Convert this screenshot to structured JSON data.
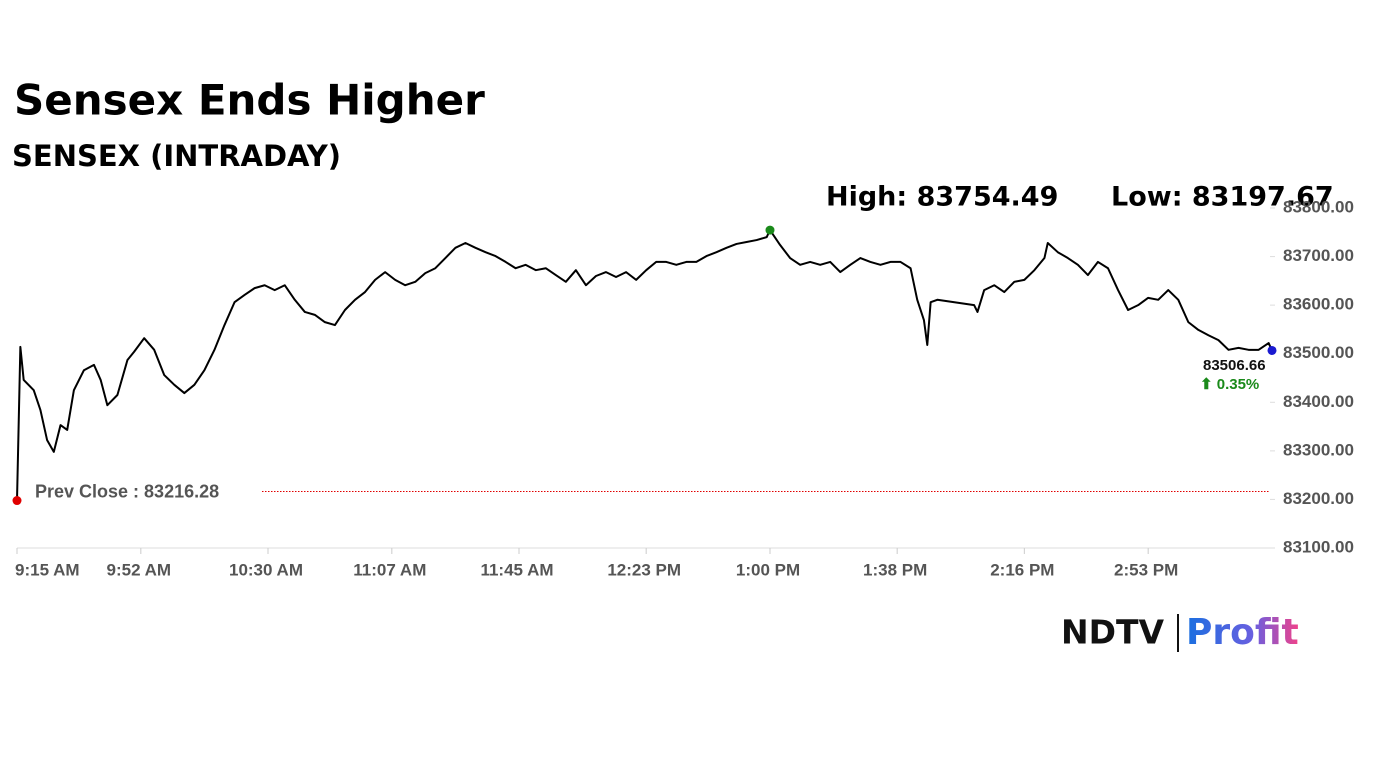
{
  "chart_data": {
    "type": "line",
    "title": "Sensex Ends Higher",
    "subtitle": "SENSEX (INTRADAY)",
    "high": {
      "value": 83754.49,
      "label": "High: 83754.49"
    },
    "low": {
      "value": 83197.67,
      "label": "Low: 83197.67"
    },
    "prev_close": {
      "value": 83216.28,
      "label": "Prev Close : 83216.28"
    },
    "last": {
      "value": 83506.66,
      "label": "83506.66"
    },
    "change": {
      "value": 0.35,
      "label": "⬆ 0.35%"
    },
    "x": [
      "9:15 AM",
      "9:16 AM",
      "9:17 AM",
      "9:20 AM",
      "9:22 AM",
      "9:24 AM",
      "9:26 AM",
      "9:28 AM",
      "9:30 AM",
      "9:32 AM",
      "9:35 AM",
      "9:38 AM",
      "9:40 AM",
      "9:42 AM",
      "9:45 AM",
      "9:48 AM",
      "9:50 AM",
      "9:53 AM",
      "9:56 AM",
      "9:59 AM",
      "10:02 AM",
      "10:05 AM",
      "10:08 AM",
      "10:11 AM",
      "10:14 AM",
      "10:17 AM",
      "10:20 AM",
      "10:23 AM",
      "10:26 AM",
      "10:29 AM",
      "10:32 AM",
      "10:35 AM",
      "10:38 AM",
      "10:41 AM",
      "10:44 AM",
      "10:47 AM",
      "10:50 AM",
      "10:53 AM",
      "10:56 AM",
      "10:59 AM",
      "11:02 AM",
      "11:05 AM",
      "11:08 AM",
      "11:11 AM",
      "11:14 AM",
      "11:17 AM",
      "11:20 AM",
      "11:23 AM",
      "11:26 AM",
      "11:29 AM",
      "11:32 AM",
      "11:35 AM",
      "11:38 AM",
      "11:41 AM",
      "11:44 AM",
      "11:47 AM",
      "11:50 AM",
      "11:53 AM",
      "11:56 AM",
      "11:59 AM",
      "12:02 PM",
      "12:05 PM",
      "12:08 PM",
      "12:11 PM",
      "12:14 PM",
      "12:17 PM",
      "12:20 PM",
      "12:23 PM",
      "12:26 PM",
      "12:29 PM",
      "12:32 PM",
      "12:35 PM",
      "12:38 PM",
      "12:41 PM",
      "12:44 PM",
      "12:47 PM",
      "12:50 PM",
      "12:53 PM",
      "12:56 PM",
      "12:59 PM",
      "1:00 PM",
      "1:03 PM",
      "1:06 PM",
      "1:09 PM",
      "1:12 PM",
      "1:15 PM",
      "1:18 PM",
      "1:21 PM",
      "1:24 PM",
      "1:27 PM",
      "1:30 PM",
      "1:33 PM",
      "1:36 PM",
      "1:39 PM",
      "1:42 PM",
      "1:44 PM",
      "1:46 PM",
      "1:47 PM",
      "1:48 PM",
      "1:50 PM",
      "2:01 PM",
      "2:02 PM",
      "2:04 PM",
      "2:07 PM",
      "2:10 PM",
      "2:13 PM",
      "2:16 PM",
      "2:19 PM",
      "2:22 PM",
      "2:23 PM",
      "2:26 PM",
      "2:29 PM",
      "2:32 PM",
      "2:35 PM",
      "2:38 PM",
      "2:41 PM",
      "2:44 PM",
      "2:47 PM",
      "2:50 PM",
      "2:53 PM",
      "2:56 PM",
      "2:59 PM",
      "3:02 PM",
      "3:05 PM",
      "3:08 PM",
      "3:11 PM",
      "3:14 PM",
      "3:17 PM",
      "3:20 PM",
      "3:23 PM",
      "3:26 PM",
      "3:29 PM",
      "3:30 PM"
    ],
    "series": [
      {
        "name": "SENSEX",
        "color": "#000000",
        "values": [
          83197.67,
          83514,
          83446,
          83425,
          83384,
          83322,
          83298,
          83353,
          83343,
          83425,
          83466,
          83477,
          83446,
          83394,
          83415,
          83487,
          83504,
          83532,
          83508,
          83456,
          83436,
          83419,
          83436,
          83466,
          83508,
          83559,
          83606,
          83621,
          83635,
          83641,
          83631,
          83641,
          83611,
          83586,
          83580,
          83565,
          83559,
          83590,
          83611,
          83627,
          83652,
          83668,
          83652,
          83641,
          83648,
          83666,
          83676,
          83697,
          83718,
          83728,
          83718,
          83709,
          83701,
          83689,
          83676,
          83683,
          83672,
          83676,
          83662,
          83648,
          83672,
          83641,
          83660,
          83668,
          83658,
          83668,
          83652,
          83672,
          83689,
          83689,
          83683,
          83689,
          83689,
          83701,
          83709,
          83718,
          83726,
          83730,
          83734,
          83740,
          83754.49,
          83724,
          83697,
          83683,
          83689,
          83683,
          83689,
          83668,
          83683,
          83697,
          83689,
          83683,
          83689,
          83689,
          83676,
          83611,
          83569,
          83518,
          83606,
          83611,
          83600,
          83586,
          83631,
          83641,
          83627,
          83648,
          83652,
          83672,
          83697,
          83728,
          83709,
          83697,
          83683,
          83662,
          83689,
          83676,
          83631,
          83590,
          83600,
          83615,
          83611,
          83631,
          83611,
          83565,
          83549,
          83538,
          83528,
          83508,
          83512,
          83508,
          83508,
          83522,
          83506.66
        ]
      }
    ],
    "xlim": [
      "9:15 AM",
      "3:30 PM"
    ],
    "xticks": [
      "9:15 AM",
      "9:52 AM",
      "10:30 AM",
      "11:07 AM",
      "11:45 AM",
      "12:23 PM",
      "1:00 PM",
      "1:38 PM",
      "2:16 PM",
      "2:53 PM"
    ],
    "ylim": [
      83100,
      83800
    ],
    "yticks": [
      {
        "value": 83100,
        "label": "83100.00"
      },
      {
        "value": 83200,
        "label": "83200.00"
      },
      {
        "value": 83300,
        "label": "83300.00"
      },
      {
        "value": 83400,
        "label": "83400.00"
      },
      {
        "value": 83500,
        "label": "83500.00"
      },
      {
        "value": 83600,
        "label": "83600.00"
      },
      {
        "value": 83700,
        "label": "83700.00"
      },
      {
        "value": 83800,
        "label": "83800.00"
      }
    ],
    "prev_close_color": "#e00000",
    "high_color": "#1a8a1a",
    "last_color": "#1a1ad0",
    "logo": [
      "NDTV",
      "Profit"
    ]
  }
}
